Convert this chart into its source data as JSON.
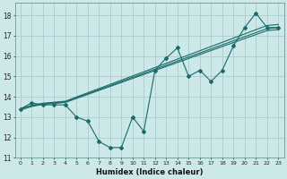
{
  "xlabel": "Humidex (Indice chaleur)",
  "bg_color": "#cce8e8",
  "grid_color": "#aacccc",
  "line_color": "#1a6b6b",
  "xlim": [
    -0.5,
    23.5
  ],
  "ylim": [
    11,
    18.6
  ],
  "xticks": [
    0,
    1,
    2,
    3,
    4,
    5,
    6,
    7,
    8,
    9,
    10,
    11,
    12,
    13,
    14,
    15,
    16,
    17,
    18,
    19,
    20,
    21,
    22,
    23
  ],
  "yticks": [
    11,
    12,
    13,
    14,
    15,
    16,
    17,
    18
  ],
  "zigzag_x": [
    0,
    1,
    2,
    3,
    4,
    5,
    6,
    7,
    8,
    9,
    10,
    11,
    12,
    13,
    14,
    15,
    16,
    17,
    18,
    19,
    20,
    21,
    22,
    23
  ],
  "zigzag_y": [
    13.4,
    13.7,
    13.6,
    13.6,
    13.6,
    13.0,
    12.8,
    11.8,
    11.5,
    11.5,
    13.0,
    12.3,
    15.3,
    15.9,
    16.4,
    15.0,
    15.3,
    14.75,
    15.3,
    16.5,
    17.4,
    18.1,
    17.4,
    17.4
  ],
  "trend1_x": [
    0,
    1,
    2,
    3,
    4,
    22,
    23
  ],
  "trend1_y": [
    13.4,
    13.55,
    13.65,
    13.7,
    13.75,
    17.35,
    17.4
  ],
  "trend2_x": [
    0,
    1,
    2,
    3,
    4,
    22,
    23
  ],
  "trend2_y": [
    13.4,
    13.58,
    13.68,
    13.73,
    13.78,
    17.5,
    17.55
  ],
  "trend3_x": [
    0,
    1,
    2,
    3,
    4,
    22,
    23
  ],
  "trend3_y": [
    13.35,
    13.52,
    13.62,
    13.67,
    13.72,
    17.25,
    17.3
  ]
}
